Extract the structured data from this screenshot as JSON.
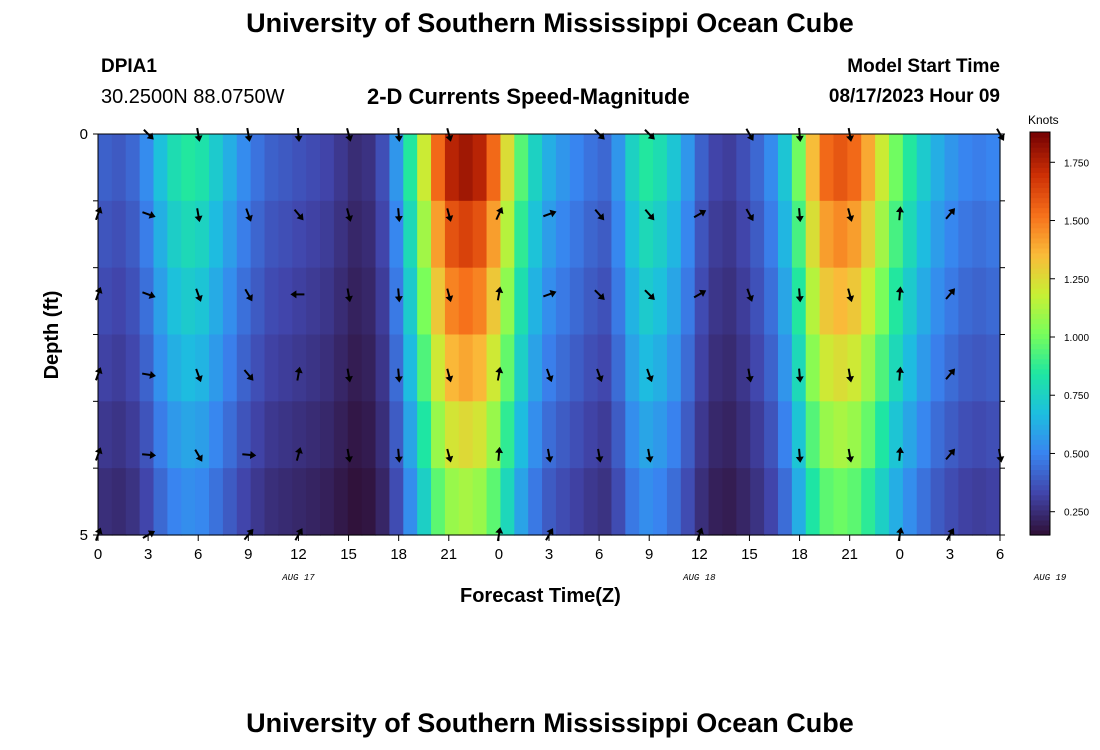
{
  "header": {
    "title": "University of Southern Mississippi Ocean Cube",
    "station": "DPIA1",
    "coords": "30.2500N  88.0750W",
    "subtitle": "2-D Currents Speed-Magnitude",
    "model_start_label": "Model Start Time",
    "model_start_value": "08/17/2023 Hour 09"
  },
  "footer": {
    "title": "University of Southern Mississippi Ocean Cube"
  },
  "chart_data": {
    "type": "heatmap",
    "title": "2-D Currents Speed-Magnitude",
    "xlabel": "Forecast Time(Z)",
    "ylabel": "Depth (ft)",
    "x_tick_labels": [
      "0",
      "3",
      "6",
      "9",
      "12",
      "15",
      "18",
      "21",
      "0",
      "3",
      "6",
      "9",
      "12",
      "15",
      "18",
      "21",
      "0",
      "3",
      "6"
    ],
    "date_labels": [
      {
        "label": "AUG 17",
        "hour_index": 12
      },
      {
        "label": "AUG 18",
        "hour_index": 36
      },
      {
        "label": "AUG 19",
        "hour_index": 57
      }
    ],
    "y_tick_labels": [
      "0",
      "5"
    ],
    "ylim": [
      0,
      5
    ],
    "depth_levels": 5,
    "forecast_hours": 54,
    "colorbar": {
      "units": "Knots",
      "tick_labels": [
        "0.250",
        "0.500",
        "0.750",
        "1.000",
        "1.250",
        "1.500",
        "1.750"
      ],
      "range": [
        0.15,
        1.88
      ]
    },
    "speed_profile_knots": [
      0.4,
      0.38,
      0.42,
      0.52,
      0.68,
      0.8,
      0.85,
      0.82,
      0.72,
      0.62,
      0.52,
      0.45,
      0.4,
      0.38,
      0.36,
      0.34,
      0.32,
      0.28,
      0.24,
      0.26,
      0.35,
      0.55,
      0.85,
      1.2,
      1.55,
      1.75,
      1.8,
      1.75,
      1.55,
      1.25,
      0.95,
      0.75,
      0.62,
      0.55,
      0.5,
      0.45,
      0.42,
      0.55,
      0.75,
      0.85,
      0.8,
      0.7,
      0.55,
      0.4,
      0.32,
      0.3,
      0.35,
      0.42,
      0.52,
      0.7,
      1.0,
      1.35,
      1.55,
      1.6,
      1.55,
      1.4,
      1.2,
      1.0,
      0.85,
      0.72,
      0.62,
      0.55,
      0.5,
      0.48,
      0.5
    ],
    "depth_factors": [
      1.0,
      0.92,
      0.85,
      0.78,
      0.7,
      0.62
    ],
    "arrows": {
      "x_hours": [
        0,
        3,
        6,
        9,
        12,
        15,
        18,
        21,
        24,
        27,
        30,
        33,
        36,
        39,
        42,
        45,
        48,
        51,
        54
      ],
      "depth_rows_ft": [
        0,
        1,
        2,
        3,
        4,
        5
      ],
      "directions_deg": [
        [
          null,
          135,
          170,
          170,
          175,
          165,
          175,
          165,
          null,
          null,
          135,
          135,
          null,
          150,
          175,
          170,
          null,
          null,
          150
        ],
        [
          20,
          110,
          170,
          160,
          140,
          165,
          175,
          165,
          25,
          70,
          140,
          140,
          60,
          150,
          175,
          165,
          5,
          40,
          null
        ],
        [
          20,
          110,
          160,
          150,
          270,
          170,
          175,
          165,
          10,
          70,
          135,
          135,
          60,
          160,
          175,
          165,
          5,
          40,
          null
        ],
        [
          20,
          100,
          160,
          140,
          10,
          170,
          175,
          165,
          10,
          160,
          160,
          160,
          null,
          170,
          175,
          170,
          5,
          40,
          null
        ],
        [
          20,
          95,
          150,
          95,
          15,
          170,
          175,
          165,
          5,
          170,
          170,
          170,
          null,
          null,
          175,
          170,
          5,
          40,
          170
        ],
        [
          20,
          60,
          null,
          40,
          30,
          null,
          null,
          null,
          10,
          30,
          null,
          null,
          20,
          null,
          null,
          null,
          10,
          30,
          null
        ]
      ]
    }
  }
}
